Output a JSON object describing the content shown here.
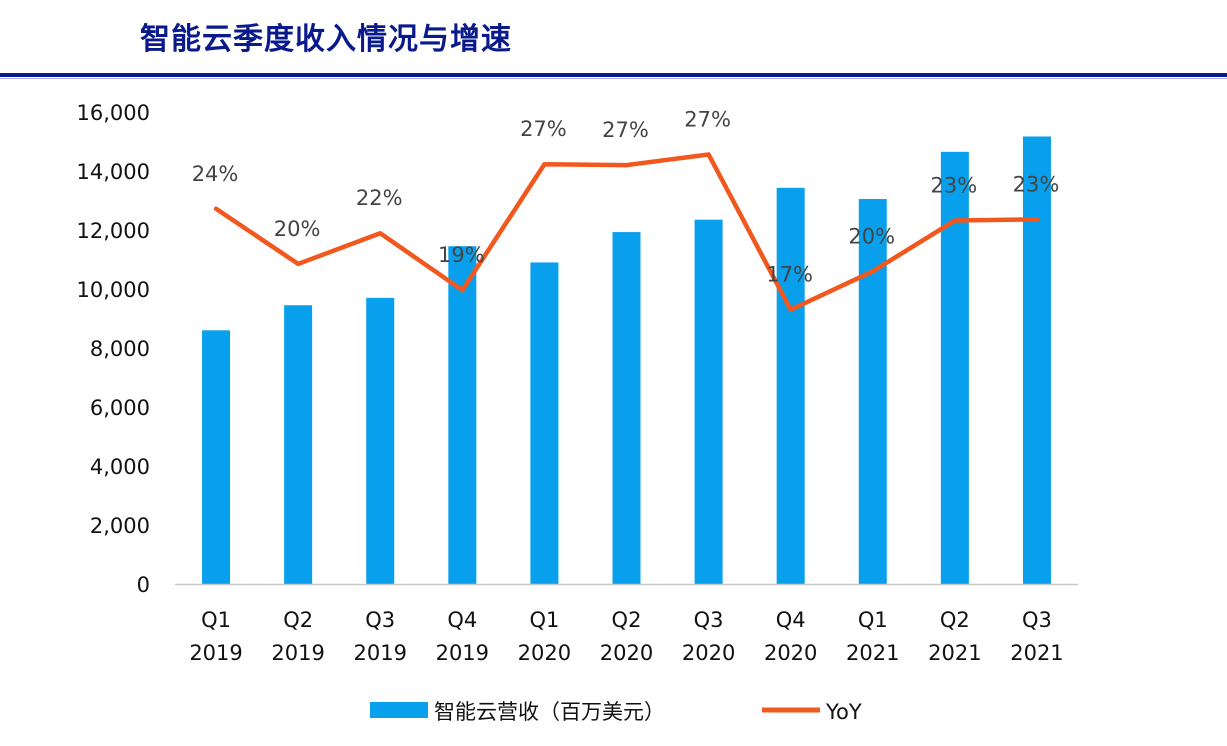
{
  "page": {
    "title": "智能云季度收入情况与增速"
  },
  "chart_data": {
    "type": "bar",
    "categories": [
      [
        "Q1",
        "2019"
      ],
      [
        "Q2",
        "2019"
      ],
      [
        "Q3",
        "2019"
      ],
      [
        "Q4",
        "2019"
      ],
      [
        "Q1",
        "2020"
      ],
      [
        "Q2",
        "2020"
      ],
      [
        "Q3",
        "2020"
      ],
      [
        "Q4",
        "2020"
      ],
      [
        "Q1",
        "2021"
      ],
      [
        "Q2",
        "2021"
      ],
      [
        "Q3",
        "2021"
      ]
    ],
    "series": [
      {
        "name": "智能云营收（百万美元）",
        "type": "bar",
        "axis": "left",
        "color": "#08a0ec",
        "values": [
          8600,
          9450,
          9700,
          11450,
          10900,
          11930,
          12350,
          13430,
          13050,
          14650,
          15170
        ]
      },
      {
        "name": "YoY",
        "type": "line",
        "axis": "right",
        "color": "#f2581e",
        "values": [
          24,
          20,
          22,
          19,
          27,
          27,
          27,
          17,
          20,
          23,
          23
        ],
        "labels": [
          "24%",
          "20%",
          "22%",
          "19%",
          "27%",
          "27%",
          "27%",
          "17%",
          "20%",
          "23%",
          "23%"
        ],
        "plot_values": [
          12720,
          10850,
          11890,
          9960,
          14230,
          14200,
          14560,
          9300,
          10600,
          12320,
          12360
        ]
      }
    ],
    "y_ticks": [
      "0",
      "2,000",
      "4,000",
      "6,000",
      "8,000",
      "10,000",
      "12,000",
      "14,000",
      "16,000"
    ],
    "ylim": [
      0,
      16000
    ],
    "grid": false,
    "legend_position": "bottom"
  }
}
